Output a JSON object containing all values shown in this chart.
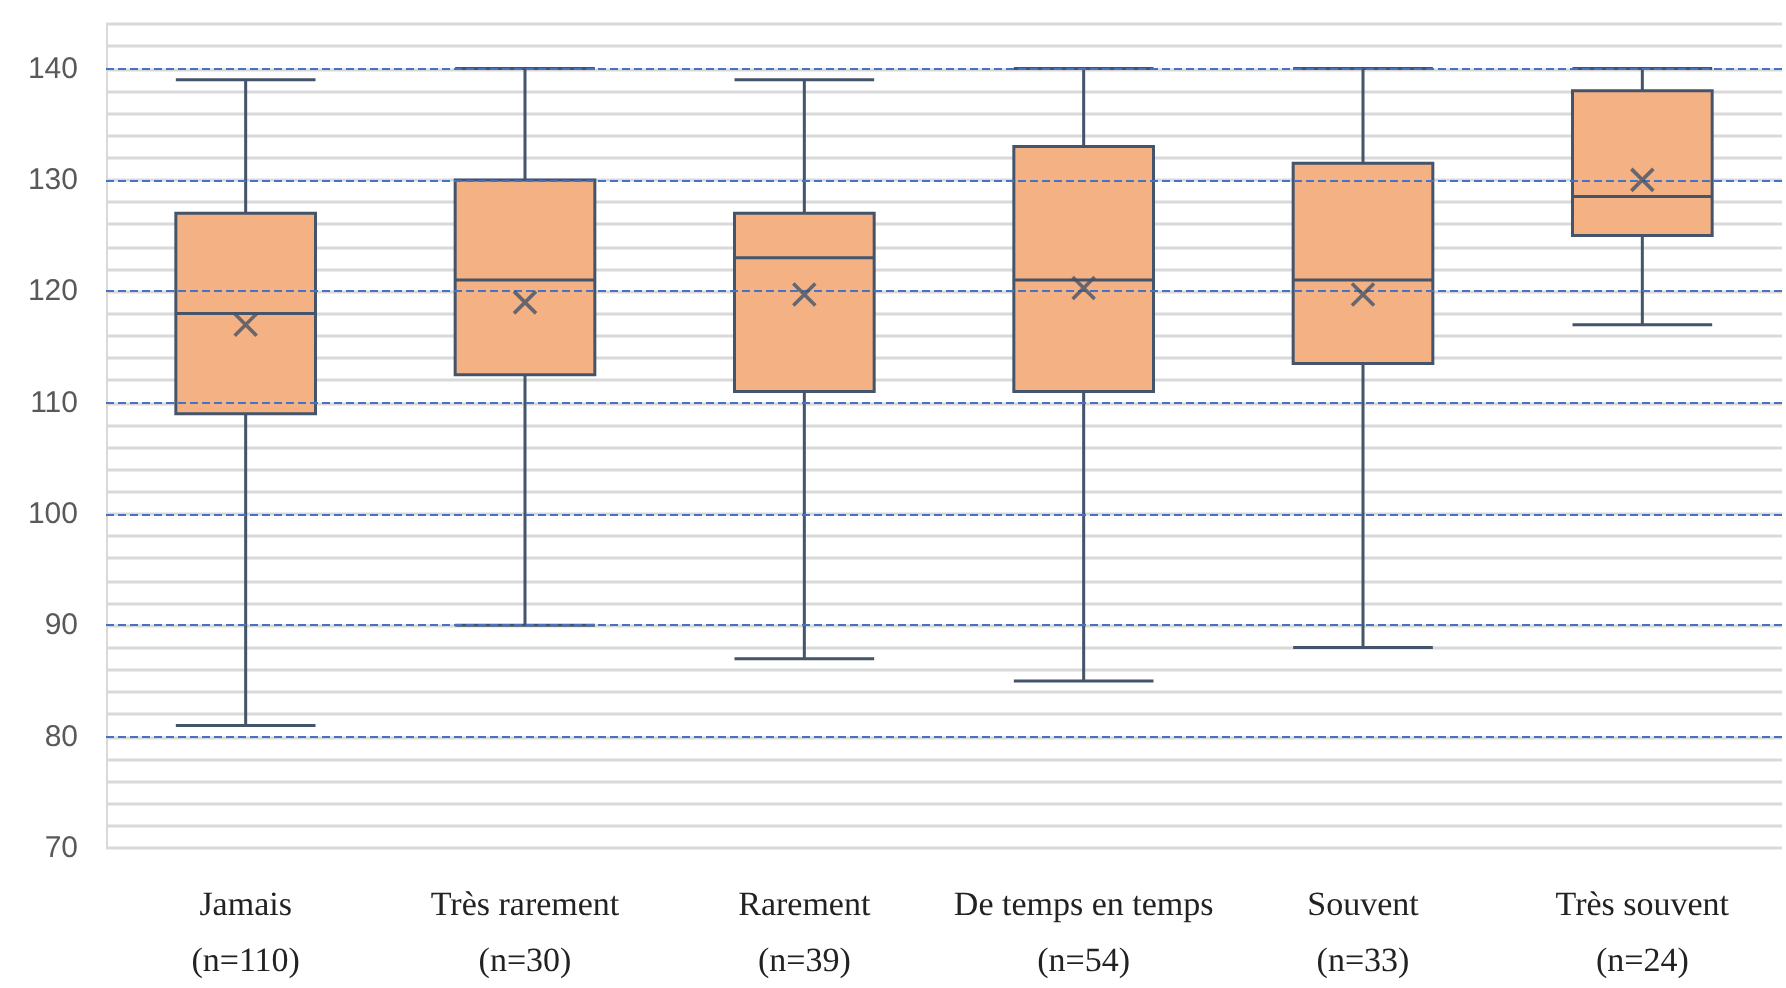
{
  "chart_data": {
    "type": "box",
    "categories": [
      "Jamais\n(n=110)",
      "Très rarement\n(n=30)",
      "Rarement\n(n=39)",
      "De temps en temps\n(n=54)",
      "Souvent\n(n=33)",
      "Très souvent\n(n=24)"
    ],
    "boxes": [
      {
        "low": 81,
        "q1": 109,
        "median": 118,
        "q3": 127,
        "high": 139,
        "mean": 117
      },
      {
        "low": 90,
        "q1": 112.5,
        "median": 121,
        "q3": 130,
        "high": 140,
        "mean": 119
      },
      {
        "low": 87,
        "q1": 111,
        "median": 123,
        "q3": 127,
        "high": 139,
        "mean": 119.7
      },
      {
        "low": 85,
        "q1": 111,
        "median": 121,
        "q3": 133,
        "high": 140,
        "mean": 120.3
      },
      {
        "low": 88,
        "q1": 113.5,
        "median": 121,
        "q3": 131.5,
        "high": 140,
        "mean": 119.7
      },
      {
        "low": 117,
        "q1": 125,
        "median": 128.5,
        "q3": 138,
        "high": 140,
        "mean": 130
      }
    ],
    "color": "#f4b183",
    "ylim": [
      70,
      144
    ],
    "yticks": [
      70,
      80,
      90,
      100,
      110,
      120,
      130,
      140
    ],
    "grid": "y"
  }
}
